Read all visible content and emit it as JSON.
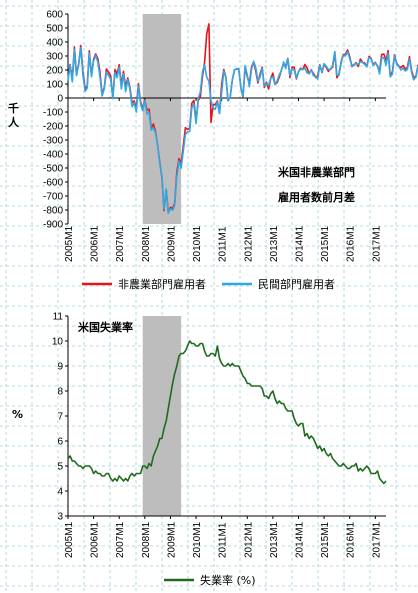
{
  "chart_data": [
    {
      "type": "line",
      "annotation_lines": [
        "米国非農業部門",
        "雇用者数前月差"
      ],
      "ylabel": "千\n人",
      "ylim": [
        -900,
        600
      ],
      "yticks": [
        600,
        500,
        400,
        300,
        200,
        100,
        0,
        -100,
        -200,
        -300,
        -400,
        -500,
        -600,
        -700,
        -800,
        -900
      ],
      "x_range": [
        "2005-01",
        "2017-06"
      ],
      "x_ticks": [
        "2005M1",
        "2006M1",
        "2007M1",
        "2008M1",
        "2009M1",
        "2010M1",
        "2011M1",
        "2012M1",
        "2013M1",
        "2014M1",
        "2015M1",
        "2016M1",
        "2017M1"
      ],
      "recession_shade": {
        "start": "2007-12",
        "end": "2009-06",
        "color": "#bdbdbd"
      },
      "legend_placement": "bottom",
      "grid": true,
      "series": [
        {
          "name": "非農業部門雇用者",
          "color": "#e8141c",
          "start": "2005-01",
          "values": [
            134,
            239,
            134,
            363,
            169,
            246,
            374,
            195,
            67,
            84,
            337,
            160,
            277,
            315,
            280,
            182,
            23,
            77,
            207,
            184,
            157,
            2,
            204,
            171,
            238,
            93,
            190,
            80,
            143,
            77,
            -34,
            -20,
            -76,
            102,
            -28,
            -78,
            -16,
            -86,
            -80,
            -215,
            -186,
            -238,
            -337,
            -460,
            -564,
            -803,
            -655,
            -818,
            -781,
            -789,
            -753,
            -528,
            -433,
            -470,
            -348,
            -212,
            -224,
            -218,
            -37,
            -18,
            -165,
            -18,
            8,
            155,
            255,
            458,
            529,
            -175,
            -47,
            -48,
            -20,
            -109,
            101,
            204,
            148,
            -20,
            7,
            128,
            202,
            207,
            208,
            75,
            7,
            217,
            153,
            104,
            223,
            257,
            192,
            108,
            171,
            221,
            76,
            113,
            64,
            142,
            178,
            98,
            110,
            150,
            200,
            242,
            227,
            283,
            146,
            221,
            219,
            136,
            187,
            212,
            203,
            240,
            216,
            173,
            200,
            176,
            147,
            159,
            237,
            182,
            243,
            219,
            190,
            208,
            220,
            326,
            144,
            172,
            261,
            311,
            312,
            343,
            296,
            225,
            236,
            252,
            225,
            278,
            256,
            250,
            225,
            297,
            284,
            238,
            254,
            227,
            190,
            311,
            314,
            266,
            338,
            154,
            189,
            308,
            247,
            228,
            218,
            232,
            208,
            218,
            295,
            195,
            148,
            156,
            233,
            238,
            264,
            272,
            126,
            258,
            204,
            228,
            138,
            157
          ]
        },
        {
          "name": "民間部門雇用者",
          "color": "#2fa9e6",
          "start": "2005-01",
          "values": [
            124,
            234,
            114,
            348,
            160,
            239,
            359,
            166,
            48,
            70,
            321,
            152,
            265,
            305,
            254,
            149,
            14,
            65,
            184,
            161,
            135,
            -5,
            182,
            145,
            221,
            64,
            172,
            45,
            131,
            63,
            -62,
            -32,
            -101,
            86,
            -42,
            -91,
            -19,
            -112,
            -107,
            -230,
            -213,
            -248,
            -339,
            -470,
            -552,
            -793,
            -650,
            -822,
            -791,
            -802,
            -766,
            -560,
            -451,
            -502,
            -384,
            -260,
            -242,
            -239,
            -70,
            -44,
            -183,
            -1,
            40,
            190,
            234,
            149,
            119,
            -20,
            -69,
            -81,
            -26,
            -111,
            42,
            194,
            144,
            -19,
            7,
            124,
            200,
            211,
            209,
            70,
            10,
            231,
            164,
            81,
            204,
            263,
            216,
            119,
            150,
            213,
            85,
            102,
            90,
            143,
            152,
            94,
            123,
            165,
            195,
            258,
            209,
            282,
            161,
            208,
            200,
            140,
            190,
            205,
            203,
            214,
            180,
            174,
            203,
            160,
            154,
            135,
            233,
            186,
            245,
            227,
            204,
            203,
            233,
            332,
            164,
            163,
            253,
            304,
            301,
            330,
            283,
            230,
            240,
            245,
            240,
            260,
            254,
            240,
            222,
            290,
            280,
            233,
            249,
            232,
            172,
            286,
            289,
            235,
            320,
            151,
            171,
            301,
            240,
            225,
            200,
            213,
            193,
            203,
            280,
            183,
            130,
            149,
            226,
            227,
            244,
            262,
            117,
            243,
            195,
            211,
            130,
            147
          ]
        }
      ]
    },
    {
      "type": "line",
      "annotation_lines": [
        "米国失業率"
      ],
      "ylabel": "%",
      "ylim": [
        3,
        11
      ],
      "yticks": [
        11,
        10,
        9,
        8,
        7,
        6,
        5,
        4,
        3
      ],
      "x_range": [
        "2005-01",
        "2017-06"
      ],
      "x_ticks": [
        "2005M1",
        "2006M1",
        "2007M1",
        "2008M1",
        "2009M1",
        "2010M1",
        "2011M1",
        "2012M1",
        "2013M1",
        "2014M1",
        "2015M1",
        "2016M1",
        "2017M1"
      ],
      "recession_shade": {
        "start": "2007-12",
        "end": "2009-06",
        "color": "#bdbdbd"
      },
      "legend_placement": "bottom",
      "grid": true,
      "series": [
        {
          "name": "失業率 (%)",
          "color": "#1e6b1e",
          "start": "2005-01",
          "values": [
            5.3,
            5.4,
            5.2,
            5.2,
            5.1,
            5.0,
            5.0,
            4.9,
            5.0,
            5.0,
            5.0,
            4.9,
            4.7,
            4.8,
            4.7,
            4.7,
            4.6,
            4.6,
            4.7,
            4.7,
            4.5,
            4.4,
            4.5,
            4.4,
            4.6,
            4.5,
            4.4,
            4.5,
            4.4,
            4.6,
            4.7,
            4.6,
            4.7,
            4.7,
            4.7,
            5.0,
            5.0,
            4.9,
            5.1,
            5.0,
            5.4,
            5.6,
            5.8,
            6.1,
            6.1,
            6.5,
            6.8,
            7.3,
            7.8,
            8.3,
            8.7,
            9.0,
            9.4,
            9.5,
            9.5,
            9.6,
            9.8,
            10.0,
            9.9,
            9.9,
            9.8,
            9.8,
            9.9,
            9.9,
            9.6,
            9.4,
            9.4,
            9.5,
            9.5,
            9.4,
            9.8,
            9.3,
            9.1,
            9.0,
            9.0,
            9.1,
            9.0,
            9.1,
            9.0,
            9.0,
            9.0,
            8.8,
            8.6,
            8.5,
            8.3,
            8.3,
            8.2,
            8.2,
            8.2,
            8.2,
            8.2,
            8.1,
            7.8,
            7.8,
            7.7,
            7.9,
            8.0,
            7.7,
            7.5,
            7.6,
            7.5,
            7.5,
            7.3,
            7.2,
            7.2,
            7.2,
            6.9,
            6.7,
            6.6,
            6.7,
            6.7,
            6.2,
            6.3,
            6.1,
            6.2,
            6.1,
            5.9,
            5.7,
            5.8,
            5.6,
            5.7,
            5.5,
            5.4,
            5.5,
            5.3,
            5.2,
            5.1,
            5.0,
            5.0,
            5.1,
            5.0,
            4.9,
            4.9,
            5.0,
            5.0,
            5.1,
            4.8,
            4.9,
            4.8,
            4.9,
            5.0,
            4.9,
            4.7,
            4.7,
            4.7,
            4.8,
            4.5,
            4.4,
            4.3,
            4.4
          ]
        }
      ]
    }
  ]
}
